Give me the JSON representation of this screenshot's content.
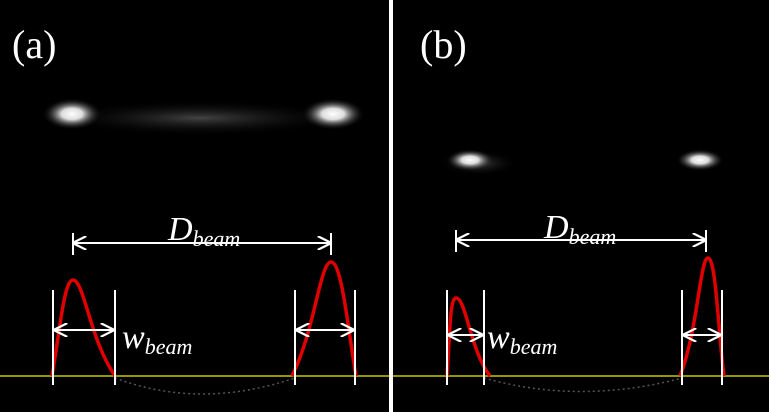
{
  "panels": [
    {
      "label": "(a)",
      "distance_label": {
        "main": "D",
        "sub": "beam"
      },
      "width_label": {
        "main": "w",
        "sub": "beam"
      }
    },
    {
      "label": "(b)",
      "distance_label": {
        "main": "D",
        "sub": "beam"
      },
      "width_label": {
        "main": "w",
        "sub": "beam"
      }
    }
  ]
}
